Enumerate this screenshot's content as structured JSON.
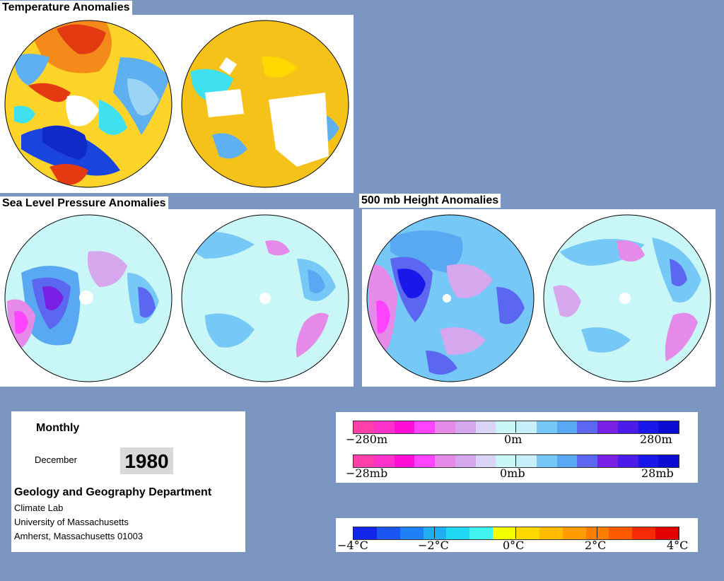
{
  "titles": {
    "temperature": "Temperature Anomalies",
    "slp": "Sea Level Pressure Anomalies",
    "height": "500 mb Height Anomalies"
  },
  "info": {
    "period": "Monthly",
    "month": "December",
    "year": "1980",
    "department": "Geology and Geography Department",
    "address_lines": [
      "Climate Lab",
      "University of Massachusetts",
      "Amherst, Massachusetts 01003"
    ]
  },
  "legends": {
    "height": {
      "labels": [
        "−280m",
        "0m",
        "280m"
      ]
    },
    "pressure": {
      "labels": [
        "−28mb",
        "0mb",
        "28mb"
      ]
    },
    "temperature": {
      "labels": [
        "−4°C",
        "−2°C",
        "0°C",
        "2°C",
        "4°C"
      ]
    }
  },
  "colors": {
    "background": "#7b96c0",
    "anomaly_scale": [
      "#ff3fa8",
      "#ff33cc",
      "#ff0fd8",
      "#ff44ff",
      "#e58ae8",
      "#d7a7ee",
      "#dad5f7",
      "#c9f6f7",
      "#c7eef9",
      "#76c9f6",
      "#58a9f2",
      "#5b67f1",
      "#7a1fe4",
      "#4b1bea",
      "#1a17eb",
      "#0a0cd2"
    ],
    "temperature_scale": [
      "#1226e9",
      "#1b55f2",
      "#1f80f5",
      "#1fb0f4",
      "#1ed8f4",
      "#3ff3f0",
      "#f2ff00",
      "#ffd800",
      "#ffbc00",
      "#ff9d00",
      "#ff7d00",
      "#ff5a00",
      "#f72a06",
      "#e50000"
    ]
  }
}
